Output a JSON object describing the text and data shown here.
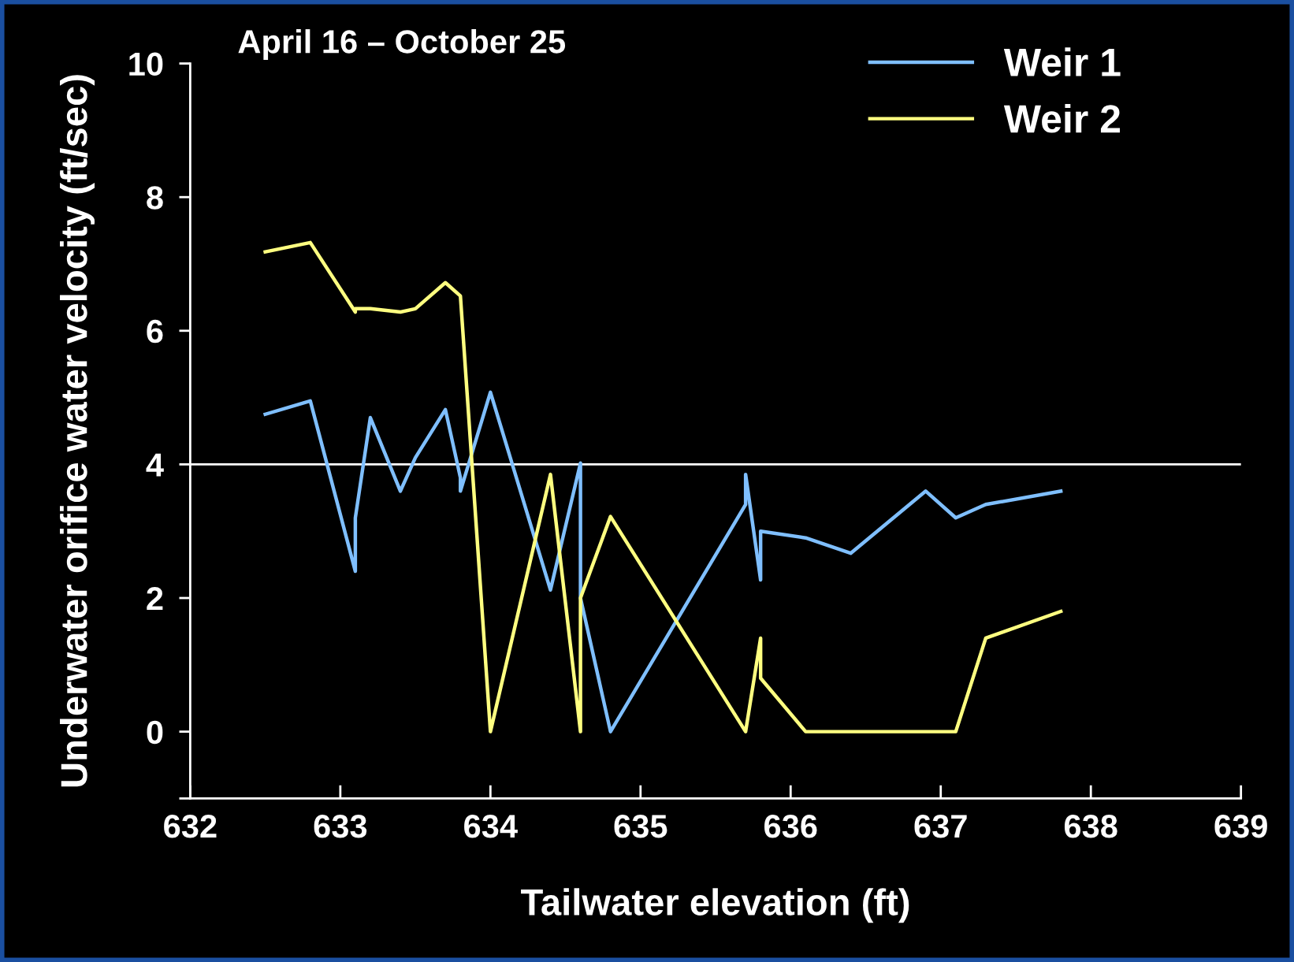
{
  "chart_data": {
    "type": "line",
    "title": "April 16 – October 25",
    "xlabel": "Tailwater elevation (ft)",
    "ylabel": "Underwater orifice water velocity (ft/sec)",
    "xlim": [
      632,
      639
    ],
    "xticks": [
      632,
      633,
      634,
      635,
      636,
      637,
      638,
      639
    ],
    "ylim": [
      -1,
      10
    ],
    "yticks": [
      {
        "value": -1,
        "label": null
      },
      0,
      2,
      4,
      6,
      8,
      10
    ],
    "grid": false,
    "legend": "top right",
    "marker": "none",
    "line_style": "solid",
    "ref_lines": [
      {
        "axis": "y",
        "value": 4,
        "label": null,
        "color": "#ffffff"
      }
    ],
    "series": [
      {
        "name": "Weir 1",
        "color": "#7fbfff",
        "x": [
          632.5,
          632.8,
          633.1,
          633.1,
          633.2,
          633.4,
          633.5,
          633.7,
          633.8,
          633.8,
          634.0,
          634.4,
          634.6,
          634.6,
          634.8,
          635.7,
          635.7,
          635.8,
          635.8,
          636.1,
          636.4,
          636.9,
          637.1,
          637.3,
          637.8
        ],
        "values": [
          4.75,
          4.95,
          2.4,
          3.2,
          4.7,
          3.6,
          4.1,
          4.82,
          3.8,
          3.6,
          5.08,
          2.12,
          4.02,
          2.0,
          0,
          3.4,
          3.85,
          2.27,
          3.0,
          2.9,
          2.67,
          3.6,
          3.2,
          3.4,
          3.6
        ]
      },
      {
        "name": "Weir 2",
        "color": "#ffff80",
        "x": [
          632.5,
          632.8,
          633.1,
          633.1,
          633.2,
          633.4,
          633.5,
          633.7,
          633.8,
          634.0,
          634.4,
          634.6,
          634.6,
          634.8,
          635.7,
          635.8,
          635.8,
          636.1,
          637.1,
          637.3,
          637.8
        ],
        "values": [
          7.18,
          7.32,
          6.28,
          6.33,
          6.33,
          6.28,
          6.33,
          6.72,
          6.52,
          0,
          3.85,
          0,
          2.0,
          3.22,
          0,
          1.4,
          0.8,
          0,
          0,
          1.4,
          1.8
        ]
      }
    ]
  }
}
